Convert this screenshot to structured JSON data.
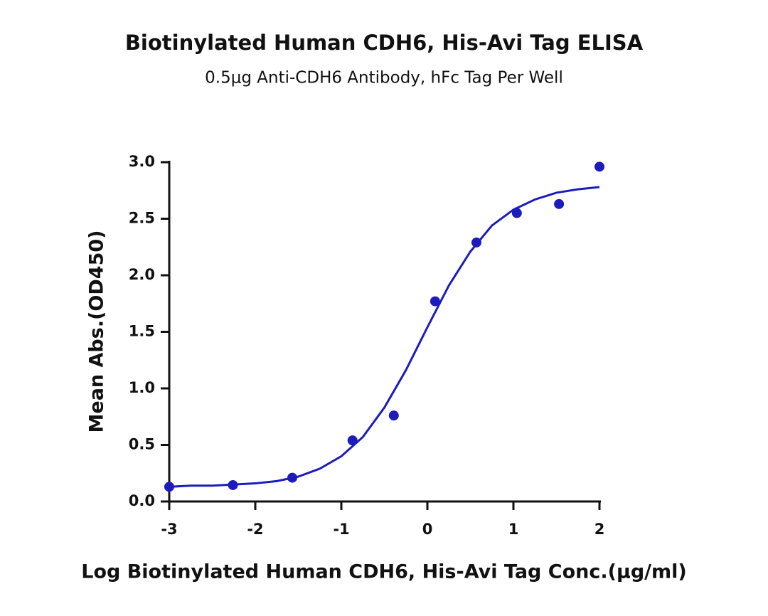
{
  "chart_data": {
    "type": "scatter",
    "title": "Biotinylated Human CDH6, His-Avi Tag ELISA",
    "subtitle": "0.5μg Anti-CDH6 Antibody, hFc Tag Per Well",
    "x_label": "Log Biotinylated Human CDH6, His-Avi Tag Conc.(μg/ml)",
    "y_label": "Mean Abs.(OD450)",
    "xlim": [
      -3,
      2
    ],
    "xticks": [
      -3,
      -2,
      -1,
      0,
      1,
      2
    ],
    "ylim": [
      0,
      3
    ],
    "yticks": [
      {
        "value": 0,
        "label": "0.0"
      },
      {
        "value": 0.5,
        "label": "0.5"
      },
      {
        "value": 1,
        "label": "1.0"
      },
      {
        "value": 1.5,
        "label": "1.5"
      },
      {
        "value": 2,
        "label": "2.0"
      },
      {
        "value": 2.5,
        "label": "2.5"
      },
      {
        "value": 3,
        "label": "3.0"
      }
    ],
    "series": [
      {
        "style": "markers",
        "color": "#1c1cbd",
        "x": [
          -3,
          -2.26,
          -1.57,
          -0.87,
          -0.39,
          0.09,
          0.57,
          1.04,
          1.53,
          2.0
        ],
        "values": [
          0.13,
          0.145,
          0.21,
          0.54,
          0.76,
          1.77,
          2.29,
          2.55,
          2.63,
          2.96
        ]
      },
      {
        "style": "line",
        "color": "#1c1cbd",
        "x": [
          -3,
          -2.75,
          -2.5,
          -2.25,
          -2,
          -1.75,
          -1.5,
          -1.25,
          -1,
          -0.75,
          -0.5,
          -0.25,
          0,
          0.25,
          0.5,
          0.75,
          1,
          1.25,
          1.5,
          1.75,
          2
        ],
        "values": [
          0.13,
          0.14,
          0.14,
          0.15,
          0.16,
          0.18,
          0.22,
          0.29,
          0.4,
          0.57,
          0.83,
          1.16,
          1.54,
          1.91,
          2.21,
          2.44,
          2.58,
          2.67,
          2.73,
          2.76,
          2.78
        ]
      }
    ]
  }
}
